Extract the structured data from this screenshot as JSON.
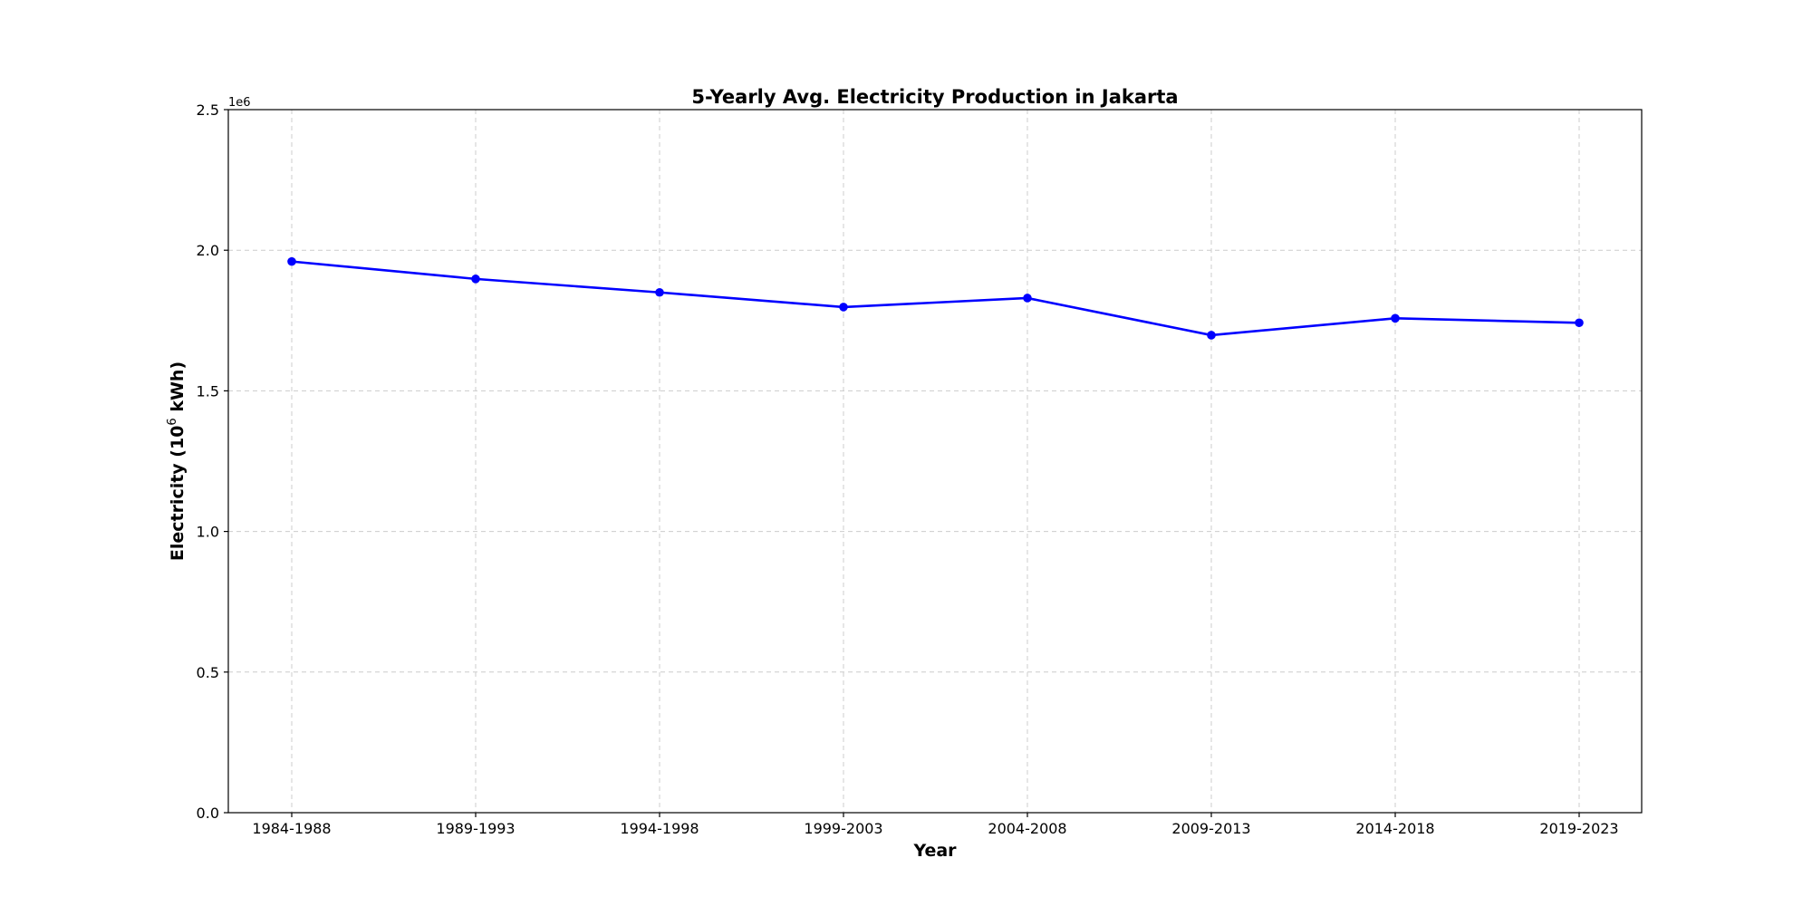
{
  "chart_data": {
    "type": "line",
    "title": "5-Yearly Avg. Electricity Production in Jakarta",
    "xlabel": "Year",
    "ylabel": "Electricity (10",
    "ylabel_superscript": "6",
    "ylabel_suffix": " kWh)",
    "y_offset_label": "1e6",
    "categories": [
      "1984-1988",
      "1989-1993",
      "1994-1998",
      "1999-2003",
      "2004-2008",
      "2009-2013",
      "2014-2018",
      "2019-2023"
    ],
    "series": [
      {
        "values": [
          1960000,
          1898000,
          1850000,
          1798000,
          1830000,
          1698000,
          1758000,
          1742000
        ],
        "color": "#0000ff",
        "marker": "circle"
      }
    ],
    "ylim": [
      0,
      2500000
    ],
    "yticks": [
      0,
      500000,
      1000000,
      1500000,
      2000000,
      2500000
    ],
    "ytick_labels": [
      "0.0",
      "0.5",
      "1.0",
      "1.5",
      "2.0",
      "2.5"
    ],
    "grid": true
  }
}
